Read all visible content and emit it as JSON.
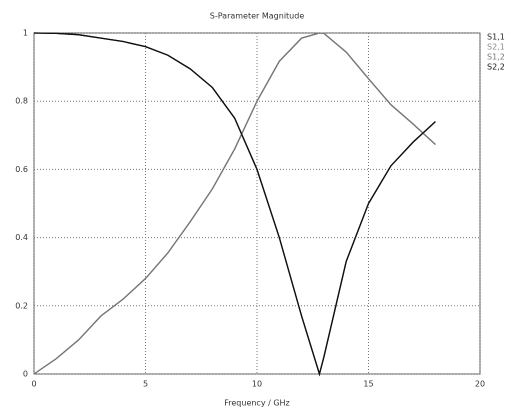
{
  "chart_data": {
    "type": "line",
    "title": "S-Parameter Magnitude",
    "x_label": "Frequency / GHz",
    "x": [
      0,
      1,
      2,
      3,
      4,
      5,
      6,
      7,
      8,
      9,
      10,
      11,
      12,
      12.8,
      13,
      14,
      15,
      16,
      17,
      18
    ],
    "series": [
      {
        "name": "S1,1",
        "color": "#222222",
        "values": [
          1.0,
          0.999,
          0.995,
          0.985,
          0.975,
          0.96,
          0.935,
          0.895,
          0.84,
          0.75,
          0.6,
          0.4,
          0.17,
          0,
          0.05,
          0.33,
          0.5,
          0.61,
          0.68,
          0.74
        ]
      },
      {
        "name": "S2,1",
        "color": "#8a8a8a",
        "values": [
          0,
          0.045,
          0.1,
          0.17,
          0.22,
          0.28,
          0.355,
          0.446,
          0.543,
          0.66,
          0.8,
          0.917,
          0.985,
          1,
          0.999,
          0.944,
          0.866,
          0.79,
          0.733,
          0.673
        ]
      },
      {
        "name": "S1,2",
        "color": "#777777",
        "values": [
          0,
          0.045,
          0.1,
          0.17,
          0.22,
          0.28,
          0.355,
          0.446,
          0.543,
          0.66,
          0.8,
          0.917,
          0.985,
          1,
          0.999,
          0.944,
          0.866,
          0.79,
          0.733,
          0.673
        ]
      },
      {
        "name": "S2,2",
        "color": "#111111",
        "values": [
          1.0,
          0.999,
          0.995,
          0.985,
          0.975,
          0.96,
          0.935,
          0.895,
          0.84,
          0.75,
          0.6,
          0.4,
          0.17,
          0,
          0.05,
          0.33,
          0.5,
          0.61,
          0.68,
          0.74
        ]
      }
    ],
    "xlim": [
      0,
      20
    ],
    "xticks": [
      0,
      5,
      10,
      15,
      20
    ],
    "ylim": [
      0,
      1
    ],
    "yticks": [
      0,
      0.2,
      0.4,
      0.6,
      0.8,
      1
    ],
    "grid": true
  }
}
